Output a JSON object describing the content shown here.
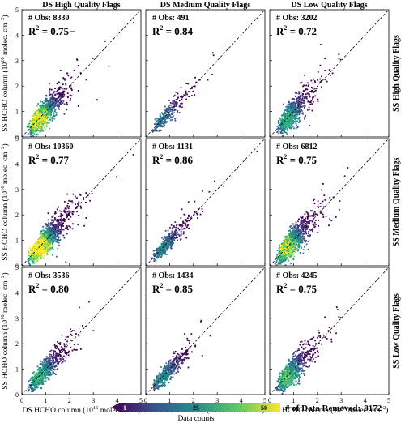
{
  "col_titles": [
    "DS High Quality Flags",
    "DS Medium Quality Flags",
    "DS Low Quality Flags"
  ],
  "row_titles": [
    "SS High Quality Flags",
    "SS Medium Quality Flags",
    "SS Low Quality Flags"
  ],
  "ylabel_text": "SS HCHO column (10",
  "ylabel_sup": "16",
  "ylabel_tail": " molec. cm",
  "ylabel_sup2": "−2",
  "ylabel_end": ")",
  "xlabel_text": "DS HCHO column (10",
  "xlabel_sup": "16",
  "xlabel_tail": " molec. cm",
  "xlabel_sup2": "−2",
  "xlabel_end": ")",
  "ticks": [
    "0",
    "1",
    "2",
    "3",
    "4",
    "5"
  ],
  "colorbar": {
    "label": "Data counts",
    "tick_labels": [
      "1",
      "25",
      "50"
    ],
    "colors": [
      "#440154",
      "#3b528b",
      "#21918c",
      "#5ec962",
      "#fde725"
    ]
  },
  "removed": {
    "label": "# of Data Removed:",
    "value": "8172"
  },
  "chart_data": [
    {
      "type": "scatter",
      "row": "SS High Quality Flags",
      "col": "DS High Quality Flags",
      "obs_text": "# Obs: 8330",
      "r2_text": "R",
      "r2_sup": "2",
      "r2_val": " = 0.75",
      "n_obs": 8330,
      "r2": 0.75,
      "spread": 0.28,
      "xlim": [
        0,
        5
      ],
      "ylim": [
        0,
        5
      ],
      "one_to_one_line": true
    },
    {
      "type": "scatter",
      "row": "SS High Quality Flags",
      "col": "DS Medium Quality Flags",
      "obs_text": "# Obs: 491",
      "r2_text": "R",
      "r2_sup": "2",
      "r2_val": " = 0.84",
      "n_obs": 491,
      "r2": 0.84,
      "spread": 0.2,
      "xlim": [
        0,
        5
      ],
      "ylim": [
        0,
        5
      ],
      "one_to_one_line": true
    },
    {
      "type": "scatter",
      "row": "SS High Quality Flags",
      "col": "DS Low Quality Flags",
      "obs_text": "# Obs: 3202",
      "r2_text": "R",
      "r2_sup": "2",
      "r2_val": " = 0.72",
      "n_obs": 3202,
      "r2": 0.72,
      "spread": 0.3,
      "xlim": [
        0,
        5
      ],
      "ylim": [
        0,
        5
      ],
      "one_to_one_line": true
    },
    {
      "type": "scatter",
      "row": "SS Medium Quality Flags",
      "col": "DS High Quality Flags",
      "obs_text": "# Obs: 10360",
      "r2_text": "R",
      "r2_sup": "2",
      "r2_val": " = 0.77",
      "n_obs": 10360,
      "r2": 0.77,
      "spread": 0.27,
      "xlim": [
        0,
        5
      ],
      "ylim": [
        0,
        5
      ],
      "one_to_one_line": true
    },
    {
      "type": "scatter",
      "row": "SS Medium Quality Flags",
      "col": "DS Medium Quality Flags",
      "obs_text": "# Obs: 1131",
      "r2_text": "R",
      "r2_sup": "2",
      "r2_val": " = 0.86",
      "n_obs": 1131,
      "r2": 0.86,
      "spread": 0.2,
      "xlim": [
        0,
        5
      ],
      "ylim": [
        0,
        5
      ],
      "one_to_one_line": true
    },
    {
      "type": "scatter",
      "row": "SS Medium Quality Flags",
      "col": "DS Low Quality Flags",
      "obs_text": "# Obs: 6812",
      "r2_text": "R",
      "r2_sup": "2",
      "r2_val": " = 0.75",
      "n_obs": 6812,
      "r2": 0.75,
      "spread": 0.3,
      "xlim": [
        0,
        5
      ],
      "ylim": [
        0,
        5
      ],
      "one_to_one_line": true
    },
    {
      "type": "scatter",
      "row": "SS Low Quality Flags",
      "col": "DS High Quality Flags",
      "obs_text": "# Obs: 3536",
      "r2_text": "R",
      "r2_sup": "2",
      "r2_val": " = 0.80",
      "n_obs": 3536,
      "r2": 0.8,
      "spread": 0.24,
      "xlim": [
        0,
        5
      ],
      "ylim": [
        0,
        5
      ],
      "one_to_one_line": true
    },
    {
      "type": "scatter",
      "row": "SS Low Quality Flags",
      "col": "DS Medium Quality Flags",
      "obs_text": "# Obs: 1434",
      "r2_text": "R",
      "r2_sup": "2",
      "r2_val": " = 0.85",
      "n_obs": 1434,
      "r2": 0.85,
      "spread": 0.21,
      "xlim": [
        0,
        5
      ],
      "ylim": [
        0,
        5
      ],
      "one_to_one_line": true
    },
    {
      "type": "scatter",
      "row": "SS Low Quality Flags",
      "col": "DS Low Quality Flags",
      "obs_text": "# Obs: 4245",
      "r2_text": "R",
      "r2_sup": "2",
      "r2_val": " = 0.75",
      "n_obs": 4245,
      "r2": 0.75,
      "spread": 0.28,
      "xlim": [
        0,
        5
      ],
      "ylim": [
        0,
        5
      ],
      "one_to_one_line": true
    }
  ]
}
